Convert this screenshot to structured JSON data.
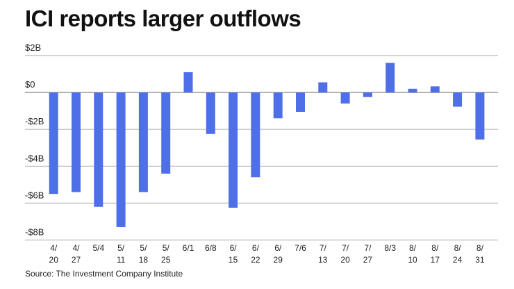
{
  "chart_data": {
    "type": "bar",
    "title": "ICI reports larger outflows",
    "source": "Source: The Investment Company Institute",
    "xlabel": "",
    "ylabel": "",
    "ylim": [
      -8,
      2
    ],
    "yticks": [
      2,
      0,
      -2,
      -4,
      -6,
      -8
    ],
    "ytick_labels": [
      "$2B",
      "$0",
      "-$2B",
      "-$4B",
      "-$6B",
      "-$8B"
    ],
    "grid": true,
    "bar_color": "#4f6fe8",
    "categories": [
      "4/20",
      "4/27",
      "5/4",
      "5/11",
      "5/18",
      "5/25",
      "6/1",
      "6/8",
      "6/15",
      "6/22",
      "6/29",
      "7/6",
      "7/13",
      "7/20",
      "7/27",
      "8/3",
      "8/10",
      "8/17",
      "8/24",
      "8/31"
    ],
    "values": [
      -5.5,
      -5.4,
      -6.2,
      -7.3,
      -5.4,
      -4.4,
      1.1,
      -2.25,
      -6.25,
      -4.6,
      -1.4,
      -1.05,
      0.55,
      -0.6,
      -0.25,
      1.6,
      0.2,
      0.33,
      -0.77,
      -2.55
    ]
  }
}
